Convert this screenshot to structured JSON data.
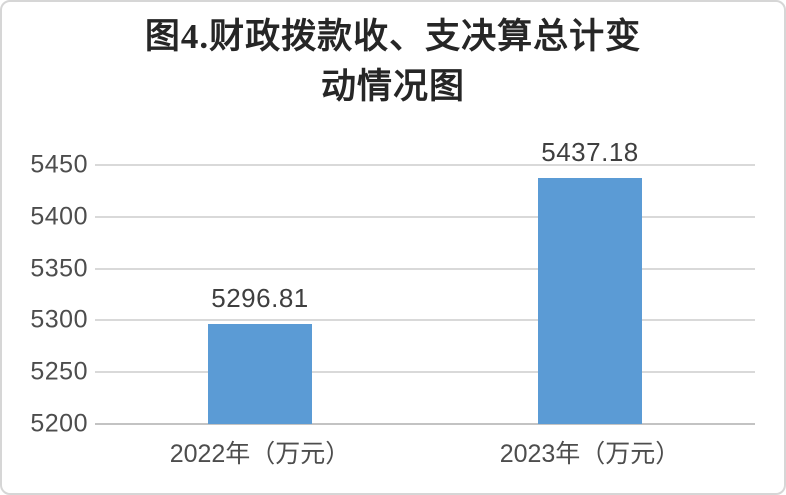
{
  "figure": {
    "background": "#ffffff",
    "border_color": "#d6d6d6"
  },
  "chart_data": {
    "type": "bar",
    "title": "图4.财政拨款收、支决算总计变动情况图",
    "title_display": "图4.财政拨款收、支决算总计变\n动情况图",
    "categories": [
      "2022年（万元）",
      "2023年（万元）"
    ],
    "values": [
      5296.81,
      5437.18
    ],
    "value_labels": [
      "5296.81",
      "5437.18"
    ],
    "xlabel": "",
    "ylabel": "",
    "ylim": [
      5200,
      5450
    ],
    "yticks": [
      5200,
      5250,
      5300,
      5350,
      5400,
      5450
    ],
    "grid": true,
    "legend": "none",
    "colors": {
      "bar": "#5B9BD5",
      "gridline": "#d9d9d9",
      "axis_line": "#c3c3c3",
      "tick_text": "#4d4d4d",
      "value_text": "#3f3f3f",
      "title_text": "#262626"
    }
  }
}
